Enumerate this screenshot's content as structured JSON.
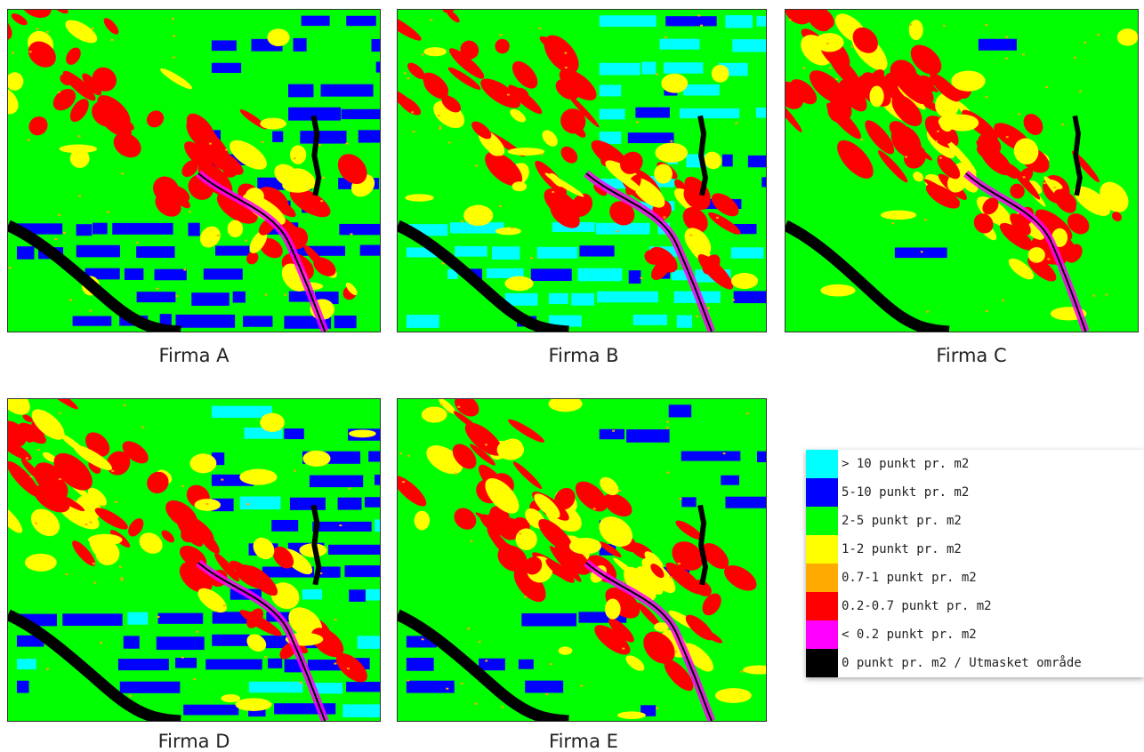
{
  "panels": [
    {
      "caption": "Firma A"
    },
    {
      "caption": "Firma B"
    },
    {
      "caption": "Firma C"
    },
    {
      "caption": "Firma D"
    },
    {
      "caption": "Firma E"
    }
  ],
  "legend": {
    "items": [
      {
        "label": "> 10 punkt pr. m2",
        "color": "#00ffff"
      },
      {
        "label": "5-10 punkt pr. m2",
        "color": "#0000ff"
      },
      {
        "label": "2-5 punkt pr. m2",
        "color": "#00ff00"
      },
      {
        "label": "1-2 punkt pr. m2",
        "color": "#ffff00"
      },
      {
        "label": "0.7-1 punkt pr. m2",
        "color": "#ffaa00"
      },
      {
        "label": "0.2-0.7 punkt pr. m2",
        "color": "#ff0000"
      },
      {
        "label": "< 0.2 punkt pr. m2",
        "color": "#ff00ff"
      },
      {
        "label": "0 punkt pr. m2 / Utmasket område",
        "color": "#000000"
      }
    ]
  }
}
